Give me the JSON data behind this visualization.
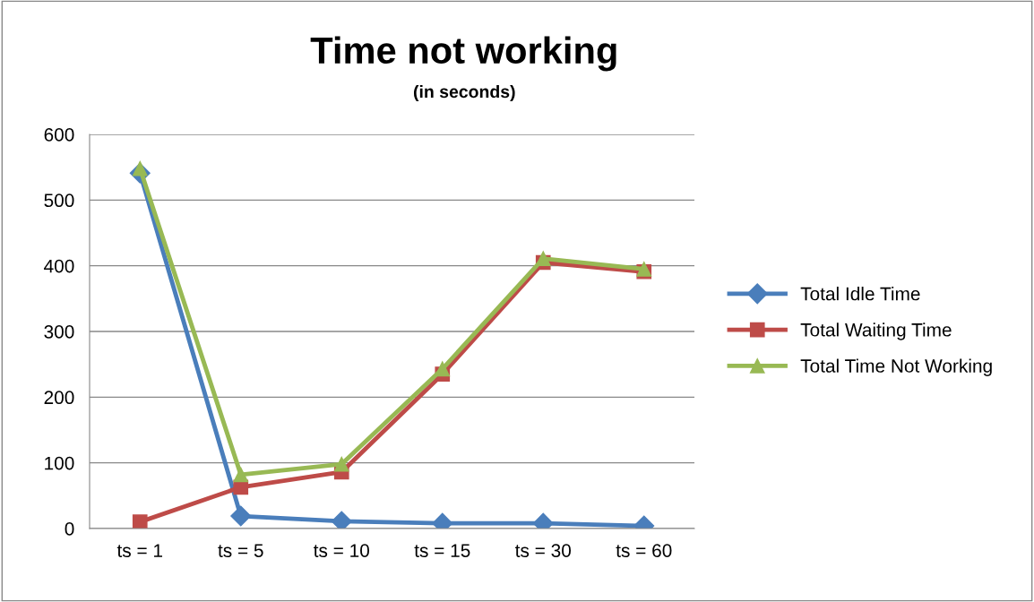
{
  "chart_data": {
    "type": "line",
    "title": "Time not working",
    "subtitle": "(in seconds)",
    "categories": [
      "ts = 1",
      "ts = 5",
      "ts = 10",
      "ts = 15",
      "ts = 30",
      "ts = 60"
    ],
    "series": [
      {
        "name": "Total Idle Time",
        "color": "#4a7ebb",
        "marker": "diamond",
        "values": [
          541,
          19,
          11,
          8,
          8,
          4
        ]
      },
      {
        "name": "Total Waiting Time",
        "color": "#be4b48",
        "marker": "square",
        "values": [
          10,
          63,
          86,
          235,
          405,
          391
        ]
      },
      {
        "name": "Total Time Not Working",
        "color": "#98b954",
        "marker": "triangle",
        "values": [
          548,
          82,
          98,
          243,
          411,
          395
        ]
      }
    ],
    "ylim": [
      0,
      600
    ],
    "yticks": [
      0,
      100,
      200,
      300,
      400,
      500,
      600
    ],
    "grid": "y",
    "legend": "right",
    "line_style": "solid"
  }
}
